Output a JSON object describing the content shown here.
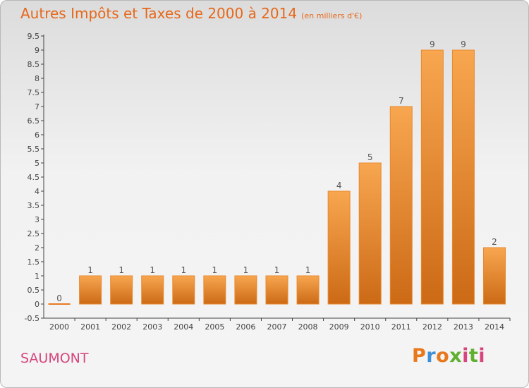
{
  "title": "Autres Impôts et Taxes de 2000 à 2014",
  "subtitle": "(en milliers d'€)",
  "commune": "SAUMONT",
  "logo": {
    "letters": [
      "P",
      "r",
      "o",
      "x",
      "i",
      "t",
      "i"
    ],
    "colors": [
      "#e8781c",
      "#3d8fd8",
      "#e8781c",
      "#5fb030",
      "#d6457c",
      "#5fb030",
      "#d6457c"
    ]
  },
  "chart_data": {
    "type": "bar",
    "title": "Autres Impôts et Taxes de 2000 à 2014",
    "subtitle": "(en milliers d'€)",
    "categories": [
      "2000",
      "2001",
      "2002",
      "2003",
      "2004",
      "2005",
      "2006",
      "2007",
      "2008",
      "2009",
      "2010",
      "2011",
      "2012",
      "2013",
      "2014"
    ],
    "values": [
      0,
      1,
      1,
      1,
      1,
      1,
      1,
      1,
      1,
      4,
      5,
      7,
      9,
      9,
      2
    ],
    "data_labels": [
      "0",
      "1",
      "1",
      "1",
      "1",
      "1",
      "1",
      "1",
      "1",
      "4",
      "5",
      "7",
      "9",
      "9",
      "2"
    ],
    "y_ticks": [
      -0.5,
      0,
      0.5,
      1,
      1.5,
      2,
      2.5,
      3,
      3.5,
      4,
      4.5,
      5,
      5.5,
      6,
      6.5,
      7,
      7.5,
      8,
      8.5,
      9,
      9.5
    ],
    "y_tick_labels": [
      "-0.5",
      "0",
      "0.5",
      "1",
      "1.5",
      "2",
      "2.5",
      "3",
      "3.5",
      "4",
      "4.5",
      "5",
      "5.5",
      "6",
      "6.5",
      "7",
      "7.5",
      "8",
      "8.5",
      "9",
      "9.5"
    ],
    "ylim": [
      -0.5,
      9.5
    ],
    "xlabel": "",
    "ylabel": "",
    "grid": false,
    "colors": {
      "bar_light": "#f8a650",
      "bar_dark": "#cc6a16",
      "zero_line": "#e87a22",
      "label": "#555555"
    }
  }
}
